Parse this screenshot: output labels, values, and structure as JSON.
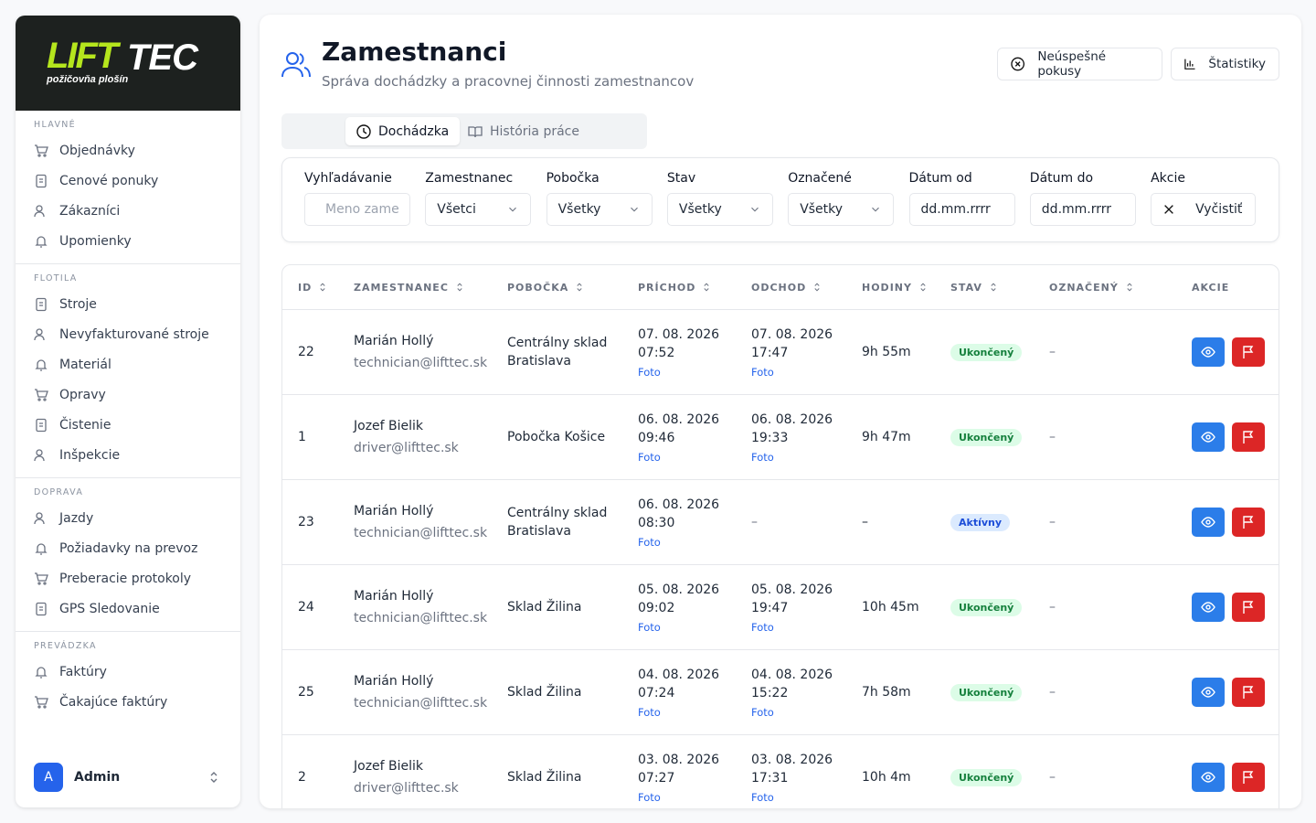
{
  "logo": {
    "part1": "LIFT",
    "part2": "TEC",
    "tagline": "požičovňa plošín"
  },
  "sidebar": {
    "sections": [
      {
        "title": "HLAVNÉ",
        "items": [
          "Objednávky",
          "Cenové ponuky",
          "Zákazníci",
          "Upomienky"
        ]
      },
      {
        "title": "FLOTILA",
        "items": [
          "Stroje",
          "Nevyfakturované stroje",
          "Materiál",
          "Opravy",
          "Čistenie",
          "Inšpekcie"
        ]
      },
      {
        "title": "DOPRAVA",
        "items": [
          "Jazdy",
          "Požiadavky na prevoz",
          "Preberacie protokoly",
          "GPS Sledovanie"
        ]
      },
      {
        "title": "PREVÁDZKA",
        "items": [
          "Faktúry",
          "Čakajúce faktúry"
        ]
      }
    ]
  },
  "user": {
    "initial": "A",
    "name": "Admin"
  },
  "header": {
    "title": "Zamestnanci",
    "subtitle": "Správa dochádzky a pracovnej činnosti zamestnancov",
    "buttons": [
      "Neúspešné pokusy",
      "Štatistiky"
    ]
  },
  "tabs": [
    "Dochádzka",
    "História práce"
  ],
  "filters": [
    {
      "label": "Vyhľadávanie",
      "value": "Meno zame"
    },
    {
      "label": "Zamestnanec",
      "value": "Všetci"
    },
    {
      "label": "Pobočka",
      "value": "Všetky"
    },
    {
      "label": "Stav",
      "value": "Všetky"
    },
    {
      "label": "Označené",
      "value": "Všetky"
    },
    {
      "label": "Dátum od",
      "value": "dd.mm.rrrr"
    },
    {
      "label": "Dátum do",
      "value": "dd.mm.rrrr"
    },
    {
      "label": "Akcie",
      "value": "Vyčistiť"
    }
  ],
  "table": {
    "headers": [
      "ID",
      "ZAMESTNANEC",
      "POBOČKA",
      "PRÍCHOD",
      "ODCHOD",
      "HODINY",
      "STAV",
      "OZNAČENÝ",
      "AKCIE"
    ],
    "rows": [
      {
        "id": "22",
        "name": "Marián Hollý",
        "email": "technician@lifttec.sk",
        "branch": "Centrálny sklad Bratislava",
        "in_date": "07. 08. 2026",
        "in_time": "07:52",
        "in_photo": "Foto",
        "out_date": "07. 08. 2026",
        "out_time": "17:47",
        "out_photo": "Foto",
        "hours": "9h 55m",
        "status": "Ukončený",
        "status_color": "green",
        "marked": "–"
      },
      {
        "id": "1",
        "name": "Jozef Bielik",
        "email": "driver@lifttec.sk",
        "branch": "Pobočka Košice",
        "in_date": "06. 08. 2026",
        "in_time": "09:46",
        "in_photo": "Foto",
        "out_date": "06. 08. 2026",
        "out_time": "19:33",
        "out_photo": "Foto",
        "hours": "9h 47m",
        "status": "Ukončený",
        "status_color": "green",
        "marked": "–"
      },
      {
        "id": "23",
        "name": "Marián Hollý",
        "email": "technician@lifttec.sk",
        "branch": "Centrálny sklad Bratislava",
        "in_date": "06. 08. 2026",
        "in_time": "08:30",
        "in_photo": "Foto",
        "out_date": "–",
        "hours": "–",
        "status": "Aktívny",
        "status_color": "blue",
        "marked": "–"
      },
      {
        "id": "24",
        "name": "Marián Hollý",
        "email": "technician@lifttec.sk",
        "branch": "Sklad Žilina",
        "in_date": "05. 08. 2026",
        "in_time": "09:02",
        "in_photo": "Foto",
        "out_date": "05. 08. 2026",
        "out_time": "19:47",
        "out_photo": "Foto",
        "hours": "10h 45m",
        "status": "Ukončený",
        "status_color": "green",
        "marked": "–"
      },
      {
        "id": "25",
        "name": "Marián Hollý",
        "email": "technician@lifttec.sk",
        "branch": "Sklad Žilina",
        "in_date": "04. 08. 2026",
        "in_time": "07:24",
        "in_photo": "Foto",
        "out_date": "04. 08. 2026",
        "out_time": "15:22",
        "out_photo": "Foto",
        "hours": "7h 58m",
        "status": "Ukončený",
        "status_color": "green",
        "marked": "–"
      },
      {
        "id": "2",
        "name": "Jozef Bielik",
        "email": "driver@lifttec.sk",
        "branch": "Sklad Žilina",
        "in_date": "03. 08. 2026",
        "in_time": "07:27",
        "in_photo": "Foto",
        "out_date": "03. 08. 2026",
        "out_time": "17:31",
        "out_photo": "Foto",
        "hours": "10h 4m",
        "status": "Ukončený",
        "status_color": "green",
        "marked": "–"
      }
    ]
  }
}
